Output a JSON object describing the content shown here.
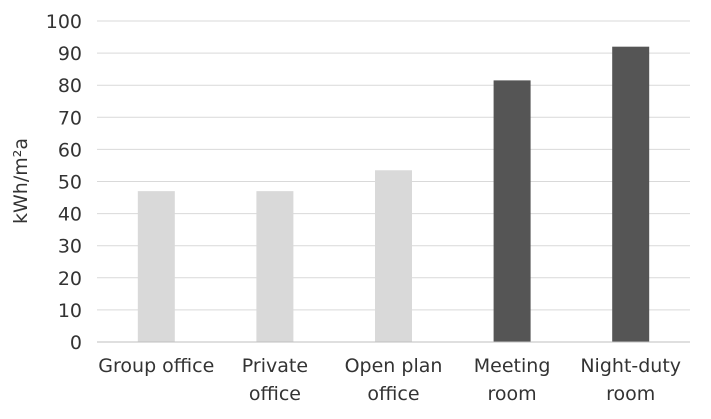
{
  "chart_data": {
    "type": "bar",
    "title": "",
    "xlabel": "",
    "ylabel": "kWh/m²a",
    "ylim": [
      0,
      100
    ],
    "ytick_step": 10,
    "grid": true,
    "legend": "none",
    "categories": [
      [
        "Group office"
      ],
      [
        "Private",
        "office"
      ],
      [
        "Open plan",
        "office"
      ],
      [
        "Meeting",
        "room"
      ],
      [
        "Night-duty",
        "room"
      ]
    ],
    "values": [
      47,
      47,
      53.5,
      81.5,
      92
    ],
    "bar_colors": [
      "#d9d9d9",
      "#d9d9d9",
      "#d9d9d9",
      "#555555",
      "#555555"
    ]
  }
}
